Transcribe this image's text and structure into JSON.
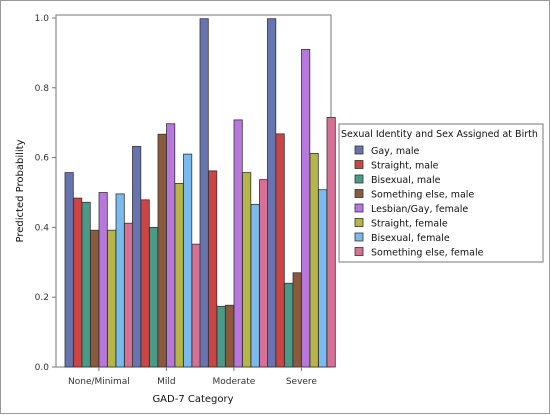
{
  "chart_data": {
    "type": "bar",
    "xlabel": "GAD-7 Category",
    "ylabel": "Predicted Probability",
    "ylim": [
      0,
      1.0
    ],
    "yticks": [
      "0.0",
      "0.2",
      "0.4",
      "0.6",
      "0.8",
      "1.0"
    ],
    "categories": [
      "None/Minimal",
      "Mild",
      "Moderate",
      "Severe"
    ],
    "legend_title": "Sexual Identity and Sex Assigned at Birth",
    "legend_position": "right",
    "series": [
      {
        "name": "Gay, male",
        "color": "#6874b0",
        "values": [
          0.557,
          0.632,
          0.998,
          0.998
        ]
      },
      {
        "name": "Straight, male",
        "color": "#cc4444",
        "values": [
          0.484,
          0.479,
          0.562,
          0.668
        ]
      },
      {
        "name": "Bisexual, male",
        "color": "#4a9a88",
        "values": [
          0.472,
          0.4,
          0.174,
          0.24
        ]
      },
      {
        "name": "Something else, male",
        "color": "#8b5a3c",
        "values": [
          0.392,
          0.667,
          0.177,
          0.27
        ]
      },
      {
        "name": "Lesbian/Gay, female",
        "color": "#b777dd",
        "values": [
          0.5,
          0.697,
          0.708,
          0.91
        ]
      },
      {
        "name": "Straight, female",
        "color": "#b6b648",
        "values": [
          0.392,
          0.526,
          0.557,
          0.612
        ]
      },
      {
        "name": "Bisexual, female",
        "color": "#79bbee",
        "values": [
          0.496,
          0.61,
          0.466,
          0.508
        ]
      },
      {
        "name": "Something else, female",
        "color": "#d86f94",
        "values": [
          0.412,
          0.352,
          0.537,
          0.715
        ]
      }
    ]
  }
}
